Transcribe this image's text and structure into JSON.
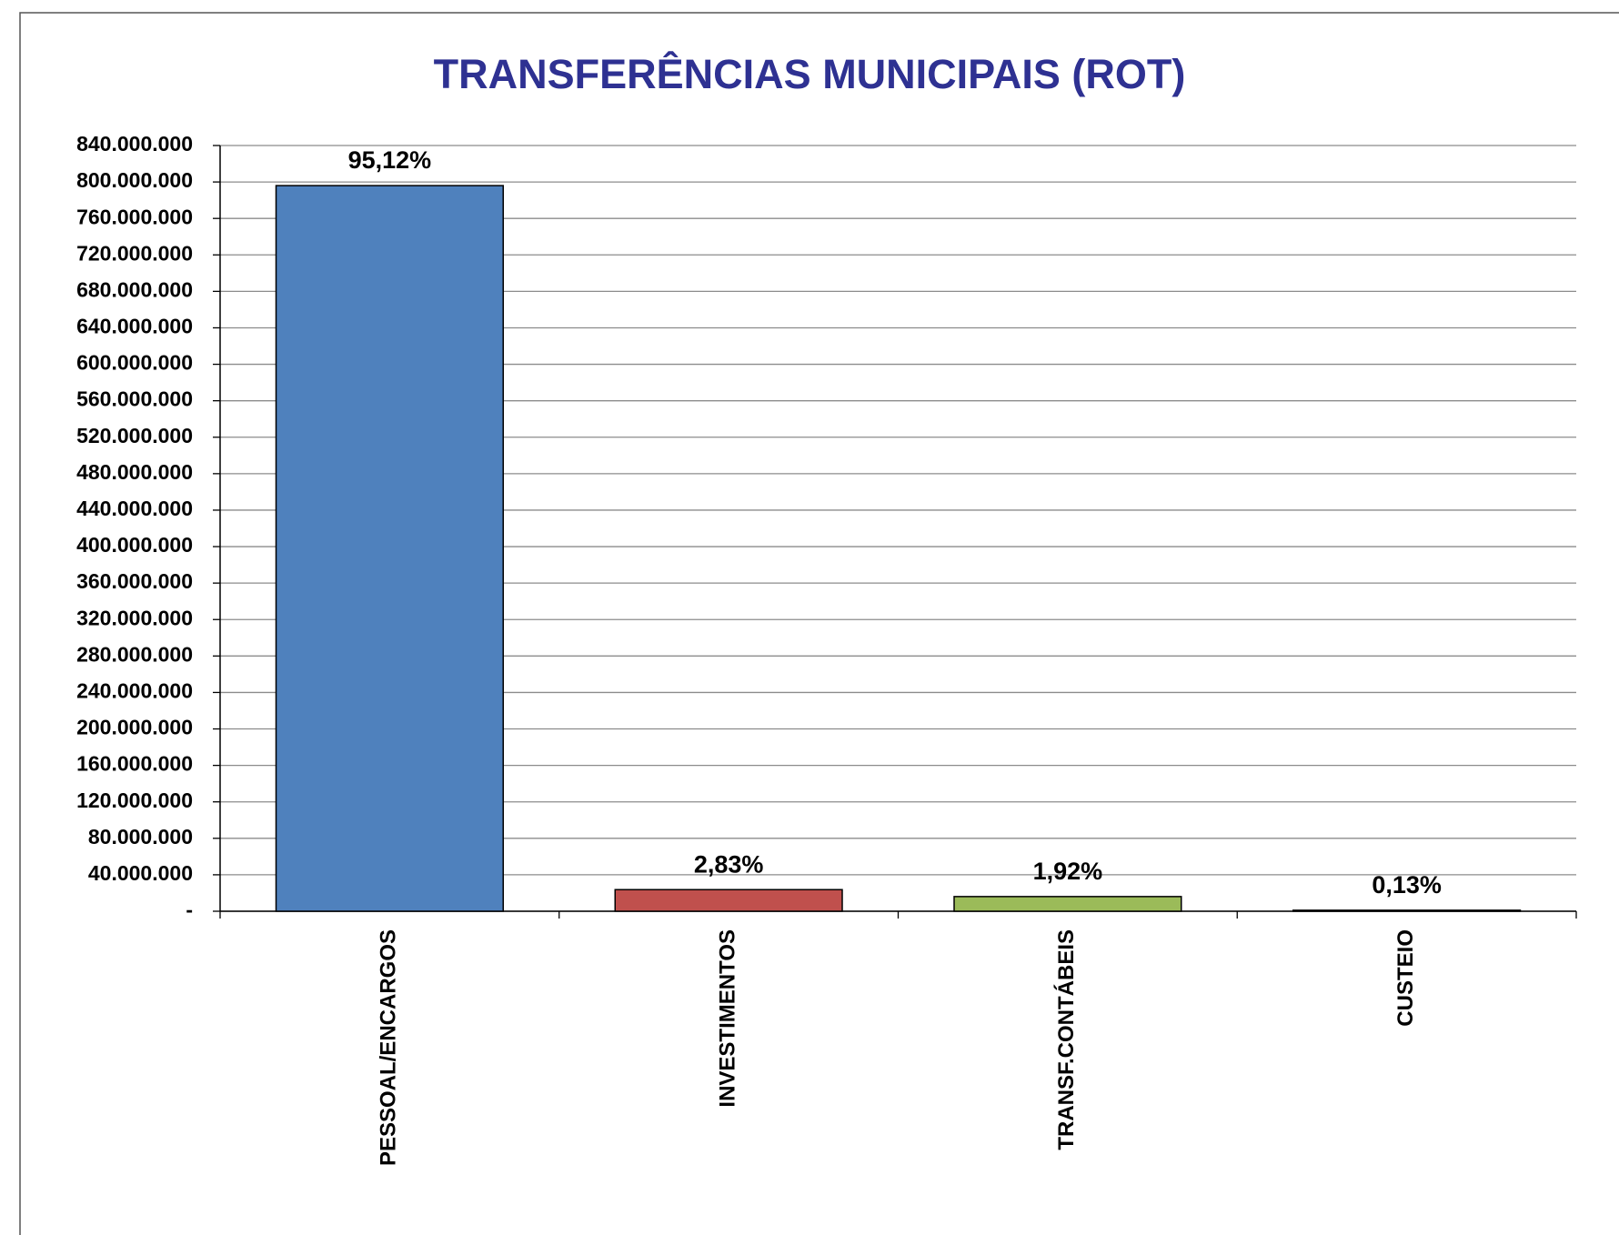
{
  "chart_data": {
    "type": "bar",
    "title": "TRANSFERÊNCIAS MUNICIPAIS (ROT)",
    "categories": [
      "PESSOAL/ENCARGOS",
      "INVESTIMENTOS",
      "TRANSF.CONTÁBEIS",
      "CUSTEIO"
    ],
    "values": [
      796000000,
      23700000,
      16100000,
      1100000
    ],
    "share_labels": [
      "95,12%",
      "2,83%",
      "1,92%",
      "0,13%"
    ],
    "colors": [
      "#4f81bd",
      "#c0504d",
      "#9bbb59",
      "#1f1f1f"
    ],
    "ylim": [
      0,
      840000000
    ],
    "yticks": [
      {
        "value": 0,
        "label": "-"
      },
      {
        "value": 40000000,
        "label": "40.000.000"
      },
      {
        "value": 80000000,
        "label": "80.000.000"
      },
      {
        "value": 120000000,
        "label": "120.000.000"
      },
      {
        "value": 160000000,
        "label": "160.000.000"
      },
      {
        "value": 200000000,
        "label": "200.000.000"
      },
      {
        "value": 240000000,
        "label": "240.000.000"
      },
      {
        "value": 280000000,
        "label": "280.000.000"
      },
      {
        "value": 320000000,
        "label": "320.000.000"
      },
      {
        "value": 360000000,
        "label": "360.000.000"
      },
      {
        "value": 400000000,
        "label": "400.000.000"
      },
      {
        "value": 440000000,
        "label": "440.000.000"
      },
      {
        "value": 480000000,
        "label": "480.000.000"
      },
      {
        "value": 520000000,
        "label": "520.000.000"
      },
      {
        "value": 560000000,
        "label": "560.000.000"
      },
      {
        "value": 600000000,
        "label": "600.000.000"
      },
      {
        "value": 640000000,
        "label": "640.000.000"
      },
      {
        "value": 680000000,
        "label": "680.000.000"
      },
      {
        "value": 720000000,
        "label": "720.000.000"
      },
      {
        "value": 760000000,
        "label": "760.000.000"
      },
      {
        "value": 800000000,
        "label": "800.000.000"
      },
      {
        "value": 840000000,
        "label": "840.000.000"
      }
    ],
    "grid": true
  }
}
